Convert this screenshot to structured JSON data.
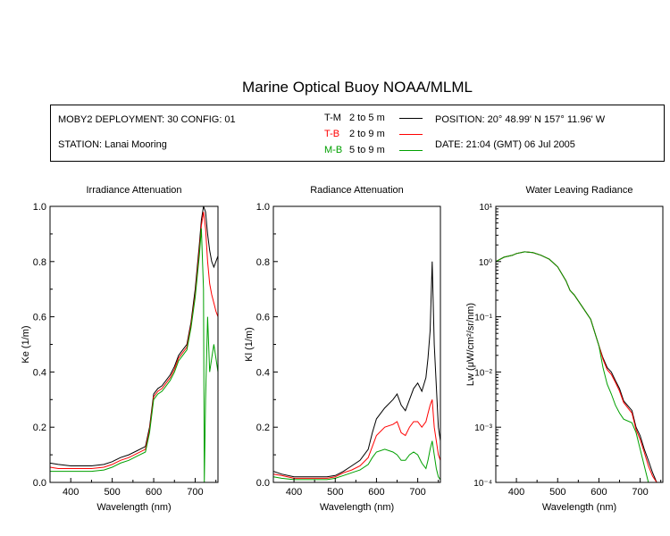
{
  "title": "Marine Optical Buoy NOAA/MLML",
  "info": {
    "deployment": "MOBY2 DEPLOYMENT: 30 CONFIG: 01",
    "station": "STATION: Lanai Mooring",
    "position": "POSITION: 20° 48.99' N   157° 11.96' W",
    "date": "DATE: 21:04 (GMT) 06 Jul 2005"
  },
  "legend": [
    {
      "name": "T-M",
      "range": "2 to 5  m",
      "color": "#000000"
    },
    {
      "name": "T-B",
      "range": "2 to 9  m",
      "color": "#ff0000"
    },
    {
      "name": "M-B",
      "range": "5 to 9  m",
      "color": "#00a000"
    }
  ],
  "chart_data": [
    {
      "type": "line",
      "title": "Irradiance Attenuation",
      "xlabel": "Wavelength (nm)",
      "ylabel": "Ke  (1/m)",
      "xlim": [
        350,
        755
      ],
      "ylim": [
        0,
        1
      ],
      "xticks": [
        400,
        500,
        600,
        700
      ],
      "yticks": [
        0,
        0.2,
        0.4,
        0.6,
        0.8,
        1.0
      ],
      "ytick_labels": [
        "0.0",
        "0.2",
        "0.4",
        "0.6",
        "0.8",
        "1.0"
      ],
      "series": [
        {
          "name": "T-M",
          "color": "#000000",
          "x": [
            350,
            370,
            400,
            450,
            480,
            500,
            520,
            540,
            560,
            580,
            590,
            600,
            610,
            620,
            630,
            640,
            650,
            660,
            670,
            680,
            690,
            700,
            710,
            715,
            720,
            725,
            730,
            735,
            740,
            745,
            750,
            755
          ],
          "y": [
            0.07,
            0.065,
            0.06,
            0.06,
            0.065,
            0.075,
            0.09,
            0.1,
            0.115,
            0.13,
            0.2,
            0.32,
            0.34,
            0.35,
            0.37,
            0.39,
            0.42,
            0.46,
            0.48,
            0.5,
            0.58,
            0.7,
            0.86,
            0.95,
            1.0,
            0.98,
            0.9,
            0.84,
            0.8,
            0.78,
            0.8,
            0.82
          ]
        },
        {
          "name": "T-B",
          "color": "#ff0000",
          "x": [
            350,
            370,
            400,
            450,
            480,
            500,
            520,
            540,
            560,
            580,
            590,
            600,
            610,
            620,
            630,
            640,
            650,
            660,
            670,
            680,
            690,
            700,
            710,
            715,
            720,
            725,
            730,
            735,
            740,
            745,
            750,
            755
          ],
          "y": [
            0.055,
            0.05,
            0.05,
            0.05,
            0.055,
            0.065,
            0.08,
            0.09,
            0.105,
            0.12,
            0.19,
            0.31,
            0.33,
            0.34,
            0.36,
            0.38,
            0.41,
            0.45,
            0.47,
            0.49,
            0.57,
            0.68,
            0.84,
            0.93,
            0.98,
            0.92,
            0.8,
            0.72,
            0.68,
            0.65,
            0.62,
            0.6
          ]
        },
        {
          "name": "M-B",
          "color": "#00a000",
          "x": [
            350,
            370,
            400,
            450,
            480,
            500,
            520,
            540,
            560,
            580,
            590,
            600,
            610,
            620,
            630,
            640,
            650,
            660,
            670,
            680,
            690,
            700,
            710,
            715,
            720,
            722,
            725,
            730,
            735,
            740,
            745,
            750,
            755
          ],
          "y": [
            0.04,
            0.04,
            0.04,
            0.04,
            0.045,
            0.055,
            0.07,
            0.08,
            0.095,
            0.11,
            0.18,
            0.3,
            0.32,
            0.33,
            0.35,
            0.37,
            0.4,
            0.44,
            0.46,
            0.48,
            0.56,
            0.67,
            0.82,
            0.92,
            0.7,
            0.0,
            0.3,
            0.6,
            0.4,
            0.45,
            0.5,
            0.45,
            0.4
          ]
        }
      ]
    },
    {
      "type": "line",
      "title": "Radiance Attenuation",
      "xlabel": "Wavelength (nm)",
      "ylabel": "Kl  (1/m)",
      "xlim": [
        350,
        755
      ],
      "ylim": [
        0,
        1
      ],
      "xticks": [
        400,
        500,
        600,
        700
      ],
      "yticks": [
        0,
        0.2,
        0.4,
        0.6,
        0.8,
        1.0
      ],
      "ytick_labels": [
        "0.0",
        "0.2",
        "0.4",
        "0.6",
        "0.8",
        "1.0"
      ],
      "series": [
        {
          "name": "T-M",
          "color": "#000000",
          "x": [
            350,
            370,
            400,
            450,
            480,
            500,
            520,
            540,
            560,
            580,
            590,
            600,
            620,
            640,
            650,
            660,
            670,
            680,
            690,
            700,
            710,
            720,
            725,
            730,
            735,
            740,
            745,
            750,
            755
          ],
          "y": [
            0.04,
            0.03,
            0.02,
            0.02,
            0.02,
            0.025,
            0.04,
            0.06,
            0.08,
            0.12,
            0.18,
            0.23,
            0.27,
            0.3,
            0.32,
            0.28,
            0.26,
            0.3,
            0.34,
            0.36,
            0.33,
            0.38,
            0.45,
            0.55,
            0.8,
            0.5,
            0.35,
            0.2,
            0.15
          ]
        },
        {
          "name": "T-B",
          "color": "#ff0000",
          "x": [
            350,
            370,
            400,
            450,
            480,
            500,
            520,
            540,
            560,
            580,
            590,
            600,
            620,
            640,
            650,
            660,
            670,
            680,
            690,
            700,
            710,
            720,
            725,
            730,
            735,
            740,
            745,
            750,
            755
          ],
          "y": [
            0.03,
            0.025,
            0.015,
            0.015,
            0.015,
            0.02,
            0.035,
            0.045,
            0.06,
            0.09,
            0.13,
            0.17,
            0.2,
            0.21,
            0.22,
            0.18,
            0.17,
            0.2,
            0.22,
            0.22,
            0.2,
            0.22,
            0.25,
            0.28,
            0.3,
            0.2,
            0.15,
            0.1,
            0.08
          ]
        },
        {
          "name": "M-B",
          "color": "#00a000",
          "x": [
            350,
            370,
            400,
            450,
            480,
            500,
            520,
            540,
            560,
            580,
            590,
            600,
            620,
            640,
            650,
            660,
            670,
            680,
            690,
            700,
            710,
            720,
            725,
            730,
            735,
            740,
            745,
            750,
            755
          ],
          "y": [
            0.02,
            0.015,
            0.01,
            0.01,
            0.01,
            0.015,
            0.025,
            0.035,
            0.045,
            0.065,
            0.09,
            0.11,
            0.12,
            0.11,
            0.1,
            0.08,
            0.08,
            0.1,
            0.11,
            0.1,
            0.07,
            0.05,
            0.08,
            0.12,
            0.15,
            0.1,
            0.05,
            0.02,
            0.01
          ]
        }
      ]
    },
    {
      "type": "line",
      "title": "Water Leaving Radiance",
      "xlabel": "Wavelength (nm)",
      "ylabel": "Lw  (μW/cm²/sr/nm)",
      "yscale": "log",
      "xlim": [
        350,
        755
      ],
      "ylim": [
        0.0001,
        10
      ],
      "xticks": [
        400,
        500,
        600,
        700
      ],
      "ytick_labels": [
        "10⁻⁴",
        "10⁻³",
        "10⁻²",
        "10⁻¹",
        "10⁰",
        "10¹"
      ],
      "series": [
        {
          "name": "T-M",
          "color": "#000000",
          "x": [
            350,
            370,
            390,
            400,
            420,
            440,
            460,
            480,
            500,
            520,
            530,
            540,
            560,
            580,
            600,
            610,
            620,
            630,
            640,
            650,
            660,
            680,
            690,
            700,
            710,
            720,
            730,
            740,
            745,
            750
          ],
          "y": [
            1.0,
            1.2,
            1.3,
            1.4,
            1.5,
            1.45,
            1.3,
            1.1,
            0.8,
            0.45,
            0.3,
            0.25,
            0.15,
            0.09,
            0.03,
            0.018,
            0.012,
            0.01,
            0.007,
            0.005,
            0.003,
            0.002,
            0.001,
            0.0007,
            0.0004,
            0.00025,
            0.00015,
            0.0001,
            0.0001,
            0.0001
          ]
        },
        {
          "name": "T-B",
          "color": "#ff0000",
          "x": [
            350,
            370,
            390,
            400,
            420,
            440,
            460,
            480,
            500,
            520,
            530,
            540,
            560,
            580,
            600,
            610,
            620,
            630,
            640,
            650,
            660,
            680,
            690,
            700,
            710,
            720,
            730,
            740,
            745,
            750
          ],
          "y": [
            1.0,
            1.2,
            1.3,
            1.4,
            1.5,
            1.45,
            1.3,
            1.1,
            0.8,
            0.45,
            0.3,
            0.25,
            0.15,
            0.09,
            0.03,
            0.017,
            0.011,
            0.009,
            0.0065,
            0.0045,
            0.0028,
            0.0018,
            0.0009,
            0.0006,
            0.00035,
            0.0002,
            0.00013,
            0.0001,
            0.0001,
            0.0001
          ]
        },
        {
          "name": "M-B",
          "color": "#00a000",
          "x": [
            350,
            370,
            390,
            400,
            420,
            440,
            460,
            480,
            500,
            520,
            530,
            540,
            560,
            580,
            600,
            610,
            620,
            630,
            640,
            650,
            660,
            680,
            690,
            700,
            710,
            720,
            730,
            740,
            745,
            750
          ],
          "y": [
            1.0,
            1.2,
            1.3,
            1.4,
            1.5,
            1.45,
            1.3,
            1.1,
            0.8,
            0.45,
            0.3,
            0.25,
            0.15,
            0.09,
            0.03,
            0.012,
            0.006,
            0.004,
            0.0025,
            0.0018,
            0.0014,
            0.0012,
            0.0008,
            0.0004,
            0.0002,
            0.0001,
            0.0001,
            0.0001,
            0.0001,
            0.0001
          ]
        }
      ]
    }
  ]
}
